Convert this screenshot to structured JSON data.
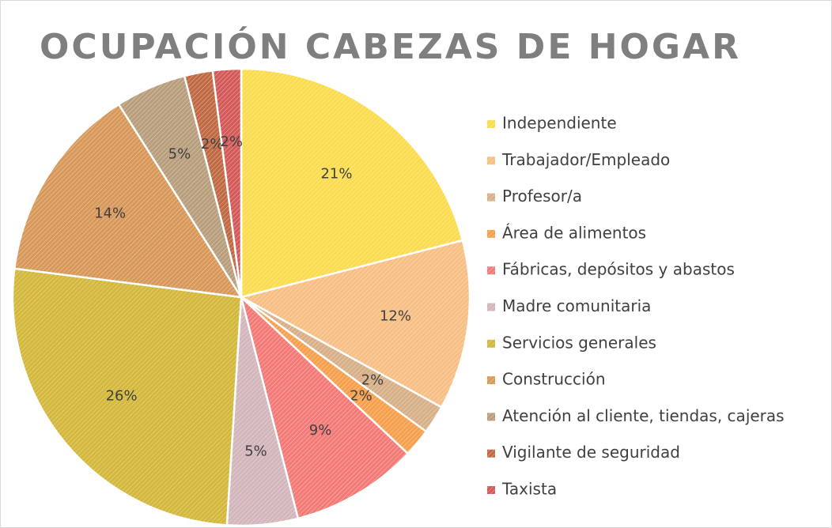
{
  "chart_data": {
    "type": "pie",
    "title": "OCUPACIÓN CABEZAS DE HOGAR",
    "categories": [
      "Independiente",
      "Trabajador/Empleado",
      "Profesor/a",
      "Área de alimentos",
      "Fábricas, depósitos y abastos",
      "Madre comunitaria",
      "Servicios generales",
      "Construcción",
      "Atención al cliente, tiendas, cajeras",
      "Vigilante de seguridad",
      "Taxista"
    ],
    "values": [
      21,
      12,
      2,
      2,
      9,
      5,
      26,
      14,
      5,
      2,
      2
    ],
    "value_labels": [
      "21%",
      "12%",
      "2%",
      "2%",
      "9%",
      "5%",
      "26%",
      "14%",
      "5%",
      "2%",
      "2%"
    ],
    "colors": [
      "#fbdc4e",
      "#f8bf84",
      "#d8b088",
      "#f6a04e",
      "#f37a76",
      "#d2b6bb",
      "#d3b83c",
      "#d8985a",
      "#b89e7c",
      "#c06a44",
      "#d35a58"
    ],
    "legend": "right"
  }
}
